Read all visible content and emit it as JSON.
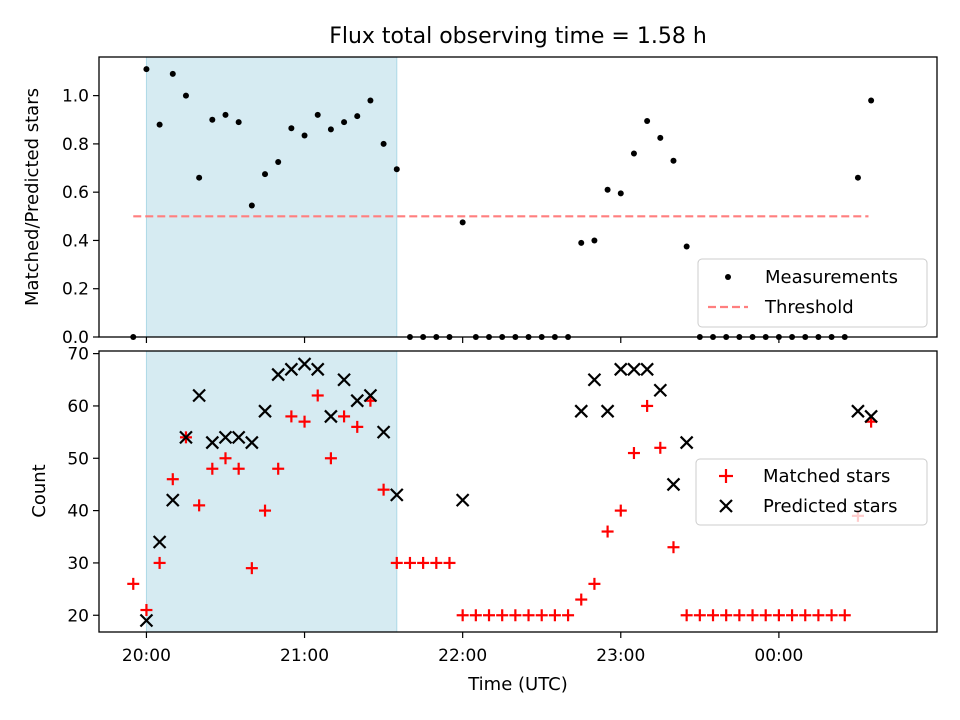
{
  "title": "Flux total observing time = 1.58 h",
  "chart_data": [
    {
      "type": "scatter",
      "title": "Flux total observing time = 1.58 h",
      "xlabel": "",
      "ylabel": "Matched/Predicted stars",
      "xlim": [
        "19:42",
        "01:00"
      ],
      "ylim": [
        0,
        1.16
      ],
      "yticks": [
        "0.0",
        "0.2",
        "0.4",
        "0.6",
        "0.8",
        "1.0"
      ],
      "shaded_interval": {
        "start": "20:00",
        "end": "21:35",
        "color": "#add8e6"
      },
      "threshold": {
        "name": "Threshold",
        "value": 0.5,
        "start": "19:55",
        "end": "00:34",
        "color": "#ff7f7f"
      },
      "series": [
        {
          "name": "Measurements",
          "color": "#000000",
          "x": [
            "19:55",
            "20:00",
            "20:05",
            "20:10",
            "20:15",
            "20:20",
            "20:25",
            "20:30",
            "20:35",
            "20:40",
            "20:45",
            "20:50",
            "20:55",
            "21:00",
            "21:05",
            "21:10",
            "21:15",
            "21:20",
            "21:25",
            "21:30",
            "21:35",
            "21:40",
            "21:45",
            "21:50",
            "21:55",
            "22:00",
            "22:05",
            "22:10",
            "22:15",
            "22:20",
            "22:25",
            "22:30",
            "22:35",
            "22:40",
            "22:45",
            "22:50",
            "22:55",
            "23:00",
            "23:05",
            "23:10",
            "23:15",
            "23:20",
            "23:25",
            "23:30",
            "23:35",
            "23:40",
            "23:45",
            "23:50",
            "23:55",
            "00:00",
            "00:05",
            "00:10",
            "00:15",
            "00:20",
            "00:25",
            "00:30",
            "00:35"
          ],
          "y": [
            0,
            1.11,
            0.88,
            1.09,
            1.0,
            0.66,
            0.9,
            0.92,
            0.89,
            0.545,
            0.675,
            0.725,
            0.865,
            0.835,
            0.92,
            0.86,
            0.89,
            0.915,
            0.98,
            0.8,
            0.695,
            0,
            0,
            0,
            0,
            0.475,
            0,
            0,
            0,
            0,
            0,
            0,
            0,
            0,
            0.39,
            0.4,
            0.61,
            0.595,
            0.76,
            0.895,
            0.825,
            0.73,
            0.375,
            0,
            0,
            0,
            0,
            0,
            0,
            0,
            0,
            0,
            0,
            0,
            0,
            0.66,
            0.98
          ]
        }
      ],
      "legend": {
        "position": "lower-right",
        "entries": [
          "Measurements",
          "Threshold"
        ]
      }
    },
    {
      "type": "scatter",
      "title": "",
      "xlabel": "Time (UTC)",
      "ylabel": "Count",
      "xlim": [
        "19:42",
        "01:00"
      ],
      "xticks": [
        "20:00",
        "21:00",
        "22:00",
        "23:00",
        "00:00"
      ],
      "ylim": [
        16.8,
        70.5
      ],
      "yticks": [
        "20",
        "30",
        "40",
        "50",
        "60",
        "70"
      ],
      "shaded_interval": {
        "start": "20:00",
        "end": "21:35",
        "color": "#add8e6"
      },
      "series": [
        {
          "name": "Matched stars",
          "marker": "+",
          "color": "#ff0000",
          "x": [
            "19:55",
            "20:00",
            "20:05",
            "20:10",
            "20:15",
            "20:20",
            "20:25",
            "20:30",
            "20:35",
            "20:40",
            "20:45",
            "20:50",
            "20:55",
            "21:00",
            "21:05",
            "21:10",
            "21:15",
            "21:20",
            "21:25",
            "21:30",
            "21:35",
            "21:40",
            "21:45",
            "21:50",
            "21:55",
            "22:00",
            "22:05",
            "22:10",
            "22:15",
            "22:20",
            "22:25",
            "22:30",
            "22:35",
            "22:40",
            "22:45",
            "22:50",
            "22:55",
            "23:00",
            "23:05",
            "23:10",
            "23:15",
            "23:20",
            "23:25",
            "23:30",
            "23:35",
            "23:40",
            "23:45",
            "23:50",
            "23:55",
            "00:00",
            "00:05",
            "00:10",
            "00:15",
            "00:20",
            "00:25",
            "00:30",
            "00:35"
          ],
          "y": [
            26,
            21,
            30,
            46,
            54,
            41,
            48,
            50,
            48,
            29,
            40,
            48,
            58,
            57,
            62,
            50,
            58,
            56,
            61,
            44,
            30,
            30,
            30,
            30,
            30,
            20,
            20,
            20,
            20,
            20,
            20,
            20,
            20,
            20,
            23,
            26,
            36,
            40,
            51,
            60,
            52,
            33,
            20,
            20,
            20,
            20,
            20,
            20,
            20,
            20,
            20,
            20,
            20,
            20,
            20,
            39,
            57
          ]
        },
        {
          "name": "Predicted stars",
          "marker": "x",
          "color": "#000000",
          "x": [
            "20:00",
            "20:05",
            "20:10",
            "20:15",
            "20:20",
            "20:25",
            "20:30",
            "20:35",
            "20:40",
            "20:45",
            "20:50",
            "20:55",
            "21:00",
            "21:05",
            "21:10",
            "21:15",
            "21:20",
            "21:25",
            "21:30",
            "21:35",
            "22:00",
            "22:45",
            "22:50",
            "22:55",
            "23:00",
            "23:05",
            "23:10",
            "23:15",
            "23:20",
            "23:25",
            "00:30",
            "00:35"
          ],
          "y": [
            19,
            34,
            42,
            54,
            62,
            53,
            54,
            54,
            53,
            59,
            66,
            67,
            68,
            67,
            58,
            65,
            61,
            62,
            55,
            43,
            42,
            59,
            65,
            59,
            67,
            67,
            67,
            63,
            45,
            53,
            59,
            58
          ]
        }
      ],
      "legend": {
        "position": "center-right",
        "entries": [
          "Matched stars",
          "Predicted stars"
        ]
      }
    }
  ]
}
